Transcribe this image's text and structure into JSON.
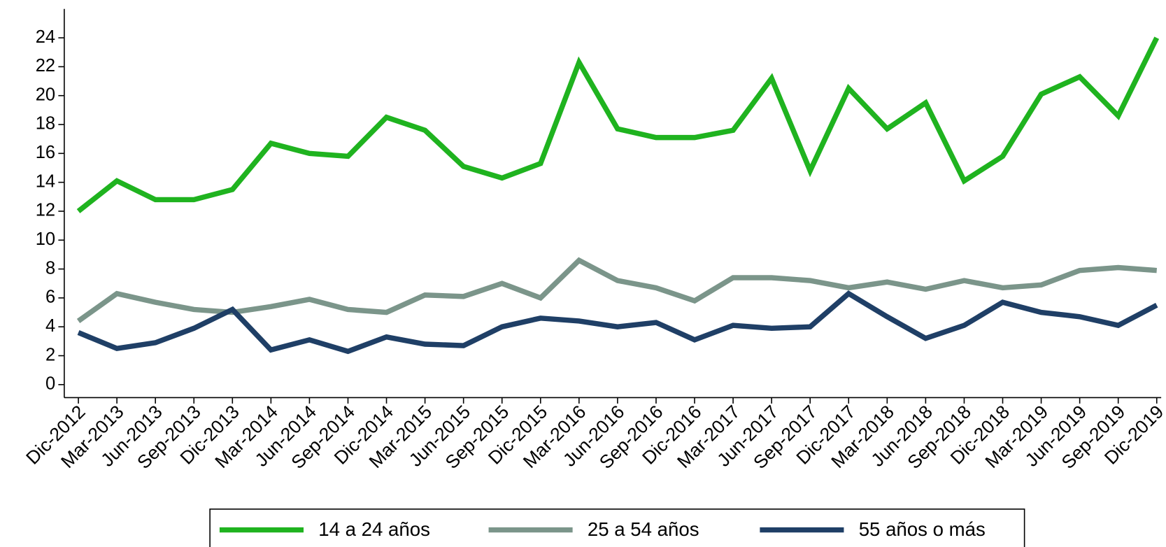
{
  "chart_data": {
    "type": "line",
    "categories": [
      "Dic-2012",
      "Mar-2013",
      "Jun-2013",
      "Sep-2013",
      "Dic-2013",
      "Mar-2014",
      "Jun-2014",
      "Sep-2014",
      "Dic-2014",
      "Mar-2015",
      "Jun-2015",
      "Sep-2015",
      "Dic-2015",
      "Mar-2016",
      "Jun-2016",
      "Sep-2016",
      "Dic-2016",
      "Mar-2017",
      "Jun-2017",
      "Sep-2017",
      "Dic-2017",
      "Mar-2018",
      "Jun-2018",
      "Sep-2018",
      "Dic-2018",
      "Mar-2019",
      "Jun-2019",
      "Sep-2019",
      "Dic-2019"
    ],
    "series": [
      {
        "name": "14 a 24 años",
        "color": "#1fb31f",
        "values": [
          12.0,
          14.1,
          12.8,
          12.8,
          13.5,
          16.7,
          16.0,
          15.8,
          18.5,
          17.6,
          15.1,
          14.3,
          15.3,
          22.3,
          17.7,
          17.1,
          17.1,
          17.6,
          21.2,
          14.8,
          20.5,
          17.7,
          19.5,
          14.1,
          15.8,
          20.1,
          21.3,
          18.6,
          24.0
        ]
      },
      {
        "name": "25 a 54 años",
        "color": "#7b958a",
        "values": [
          4.4,
          6.3,
          5.7,
          5.2,
          5.0,
          5.4,
          5.9,
          5.2,
          5.0,
          6.2,
          6.1,
          7.0,
          6.0,
          8.6,
          7.2,
          6.7,
          5.8,
          7.4,
          7.4,
          7.2,
          6.7,
          7.1,
          6.6,
          7.2,
          6.7,
          6.9,
          7.9,
          8.1,
          7.9
        ]
      },
      {
        "name": "55 años o más",
        "color": "#1f3f66",
        "values": [
          3.6,
          2.5,
          2.9,
          3.9,
          5.2,
          2.4,
          3.1,
          2.3,
          3.3,
          2.8,
          2.7,
          4.0,
          4.6,
          4.4,
          4.0,
          4.3,
          3.1,
          4.1,
          3.9,
          4.0,
          6.3,
          4.7,
          3.2,
          4.1,
          5.7,
          5.0,
          4.7,
          4.1,
          5.5
        ]
      }
    ],
    "ylim": [
      -0.9,
      26
    ],
    "yticks": [
      0,
      2,
      4,
      6,
      8,
      10,
      12,
      14,
      16,
      18,
      20,
      22,
      24
    ],
    "grid": false,
    "legend": "bottom"
  }
}
